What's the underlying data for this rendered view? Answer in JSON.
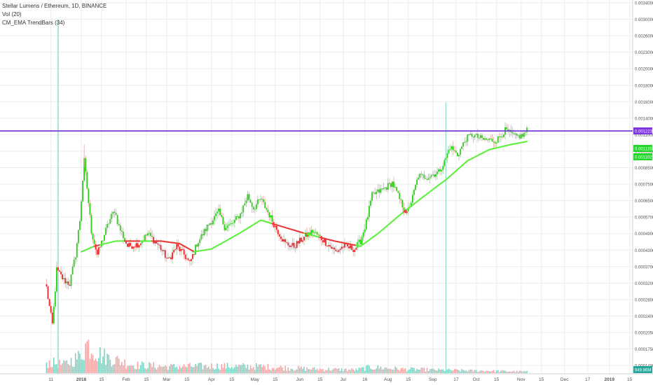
{
  "legend": {
    "title": "Stellar Lumens / Ethereum, 1D, BINANCE",
    "indicator_vol": "Vol (20)",
    "indicator_ema": "CM_EMA TrendBars (34)"
  },
  "colors": {
    "background": "#ffffff",
    "grid": "#ededed",
    "up": "#2ecc1a",
    "down": "#e8232a",
    "wick_up": "#9ec99e",
    "wick_down": "#e8a7a7",
    "vol_up": "#7fd3c4",
    "vol_down": "#f3a6a6",
    "ema_up": "#5cf03a",
    "ema_down": "#e83838",
    "hline": "#6b2fd6",
    "label_purple": "#7d33e0",
    "label_green": "#22d62a",
    "label_teal": "#26a69a"
  },
  "chart_data": {
    "type": "candlestick",
    "title": "Stellar Lumens / Ethereum, 1D, BINANCE",
    "xlabel": "",
    "ylabel": "",
    "ylim": [
      0.000135,
      0.00355
    ],
    "scale": "log",
    "grid": true,
    "legend_position": "top-left",
    "x_tick_labels": [
      "11",
      "2018",
      "15",
      "Feb",
      "15",
      "Mar",
      "15",
      "Apr",
      "15",
      "May",
      "15",
      "Jun",
      "15",
      "Jul",
      "16",
      "Aug",
      "15",
      "Sep",
      "17",
      "Oct",
      "15",
      "Nov",
      "15",
      "Dec",
      "17",
      "2019",
      "15"
    ],
    "y_tick_labels": [
      "0.00340000",
      "0.00300000",
      "0.00260000",
      "0.00230000",
      "0.00200000",
      "0.00180000",
      "0.00160000",
      "0.00140000",
      "0.00110000",
      "0.00095000",
      "0.00085000",
      "0.00075000",
      "0.00065000",
      "0.00057000",
      "0.00049000",
      "0.00043000",
      "0.00037000",
      "0.00032000",
      "0.00028000",
      "0.00024000",
      "0.00020500",
      "0.00017500",
      "0.00014800"
    ],
    "current_price_label": "0.00122300",
    "price_labels": [
      "0.00111520",
      "0.00110290"
    ],
    "volume_label": "949.86M",
    "horizontal_line": 0.001223,
    "y_anchors": [
      {
        "value": 0.0034,
        "tick": 0
      },
      {
        "value": 0.0016,
        "tick": 6
      },
      {
        "value": 0.00075,
        "tick": 11
      },
      {
        "value": 0.00049,
        "tick": 14
      },
      {
        "value": 0.00028,
        "tick": 18
      },
      {
        "value": 0.000148,
        "tick": 22
      }
    ],
    "series": [
      {
        "name": "Price",
        "type": "candlestick",
        "ohlc_keyframes": [
          {
            "x": "2017-12-08",
            "c": 0.00031
          },
          {
            "x": "2017-12-12",
            "c": 0.00022
          },
          {
            "x": "2017-12-15",
            "c": 0.00036
          },
          {
            "x": "2017-12-20",
            "c": 0.00033
          },
          {
            "x": "2017-12-24",
            "c": 0.00032
          },
          {
            "x": "2017-12-28",
            "c": 0.00041
          },
          {
            "x": "2017-12-31",
            "c": 0.00055
          },
          {
            "x": "2018-01-03",
            "c": 0.00093
          },
          {
            "x": "2018-01-06",
            "c": 0.00064
          },
          {
            "x": "2018-01-08",
            "c": 0.0005
          },
          {
            "x": "2018-01-12",
            "c": 0.00041
          },
          {
            "x": "2018-01-16",
            "c": 0.00047
          },
          {
            "x": "2018-01-20",
            "c": 0.00054
          },
          {
            "x": "2018-01-24",
            "c": 0.0006
          },
          {
            "x": "2018-01-27",
            "c": 0.00052
          },
          {
            "x": "2018-02-02",
            "c": 0.00044
          },
          {
            "x": "2018-02-10",
            "c": 0.00045
          },
          {
            "x": "2018-02-16",
            "c": 0.00049
          },
          {
            "x": "2018-02-24",
            "c": 0.00044
          },
          {
            "x": "2018-03-02",
            "c": 0.00039
          },
          {
            "x": "2018-03-08",
            "c": 0.00044
          },
          {
            "x": "2018-03-13",
            "c": 0.00041
          },
          {
            "x": "2018-03-17",
            "c": 0.00038
          },
          {
            "x": "2018-03-22",
            "c": 0.00045
          },
          {
            "x": "2018-03-30",
            "c": 0.00053
          },
          {
            "x": "2018-04-06",
            "c": 0.00059
          },
          {
            "x": "2018-04-10",
            "c": 0.00052
          },
          {
            "x": "2018-04-15",
            "c": 0.00053
          },
          {
            "x": "2018-04-21",
            "c": 0.00058
          },
          {
            "x": "2018-04-26",
            "c": 0.00068
          },
          {
            "x": "2018-04-30",
            "c": 0.00061
          },
          {
            "x": "2018-05-05",
            "c": 0.00066
          },
          {
            "x": "2018-05-10",
            "c": 0.00059
          },
          {
            "x": "2018-05-15",
            "c": 0.00052
          },
          {
            "x": "2018-05-22",
            "c": 0.00045
          },
          {
            "x": "2018-05-28",
            "c": 0.00044
          },
          {
            "x": "2018-06-05",
            "c": 0.00048
          },
          {
            "x": "2018-06-10",
            "c": 0.0005
          },
          {
            "x": "2018-06-18",
            "c": 0.00046
          },
          {
            "x": "2018-06-26",
            "c": 0.00042
          },
          {
            "x": "2018-07-01",
            "c": 0.00044
          },
          {
            "x": "2018-07-09",
            "c": 0.00043
          },
          {
            "x": "2018-07-13",
            "c": 0.00046
          },
          {
            "x": "2018-07-17",
            "c": 0.00054
          },
          {
            "x": "2018-07-21",
            "c": 0.00068
          },
          {
            "x": "2018-07-29",
            "c": 0.00072
          },
          {
            "x": "2018-08-04",
            "c": 0.00076
          },
          {
            "x": "2018-08-10",
            "c": 0.00064
          },
          {
            "x": "2018-08-14",
            "c": 0.00058
          },
          {
            "x": "2018-08-18",
            "c": 0.00067
          },
          {
            "x": "2018-08-22",
            "c": 0.00081
          },
          {
            "x": "2018-08-28",
            "c": 0.0008
          },
          {
            "x": "2018-09-05",
            "c": 0.00084
          },
          {
            "x": "2018-09-09",
            "c": 0.00092
          },
          {
            "x": "2018-09-13",
            "c": 0.00106
          },
          {
            "x": "2018-09-18",
            "c": 0.00098
          },
          {
            "x": "2018-09-24",
            "c": 0.00114
          },
          {
            "x": "2018-09-28",
            "c": 0.00118
          },
          {
            "x": "2018-10-06",
            "c": 0.00113
          },
          {
            "x": "2018-10-15",
            "c": 0.00112
          },
          {
            "x": "2018-10-21",
            "c": 0.00123
          },
          {
            "x": "2018-10-28",
            "c": 0.00116
          },
          {
            "x": "2018-11-02",
            "c": 0.00117
          },
          {
            "x": "2018-11-05",
            "c": 0.00123
          }
        ]
      },
      {
        "name": "EMA (34)",
        "type": "line",
        "keyframes": [
          {
            "x": "2018-01-01",
            "y": 0.00042
          },
          {
            "x": "2018-01-10",
            "y": 0.00044
          },
          {
            "x": "2018-01-25",
            "y": 0.00046
          },
          {
            "x": "2018-02-10",
            "y": 0.00046
          },
          {
            "x": "2018-02-25",
            "y": 0.00046
          },
          {
            "x": "2018-03-10",
            "y": 0.00045
          },
          {
            "x": "2018-03-20",
            "y": 0.00042
          },
          {
            "x": "2018-04-01",
            "y": 0.00043
          },
          {
            "x": "2018-04-20",
            "y": 0.00049
          },
          {
            "x": "2018-05-05",
            "y": 0.00055
          },
          {
            "x": "2018-05-20",
            "y": 0.00052
          },
          {
            "x": "2018-06-05",
            "y": 0.00049
          },
          {
            "x": "2018-06-25",
            "y": 0.00046
          },
          {
            "x": "2018-07-13",
            "y": 0.00044
          },
          {
            "x": "2018-07-25",
            "y": 0.00049
          },
          {
            "x": "2018-08-10",
            "y": 0.00058
          },
          {
            "x": "2018-08-25",
            "y": 0.00067
          },
          {
            "x": "2018-09-10",
            "y": 0.00078
          },
          {
            "x": "2018-09-25",
            "y": 0.00093
          },
          {
            "x": "2018-10-10",
            "y": 0.00103
          },
          {
            "x": "2018-10-25",
            "y": 0.00108
          },
          {
            "x": "2018-11-05",
            "y": 0.00111
          }
        ]
      },
      {
        "name": "Vol",
        "type": "bar",
        "keyframes": [
          {
            "x": "2017-12-08",
            "v": 60
          },
          {
            "x": "2017-12-20",
            "v": 45
          },
          {
            "x": "2017-12-31",
            "v": 90
          },
          {
            "x": "2018-01-05",
            "v": 160
          },
          {
            "x": "2018-01-15",
            "v": 95
          },
          {
            "x": "2018-02-05",
            "v": 45
          },
          {
            "x": "2018-03-01",
            "v": 35
          },
          {
            "x": "2018-04-05",
            "v": 38
          },
          {
            "x": "2018-05-05",
            "v": 35
          },
          {
            "x": "2018-06-10",
            "v": 22
          },
          {
            "x": "2018-07-10",
            "v": 18
          },
          {
            "x": "2018-07-20",
            "v": 32
          },
          {
            "x": "2018-08-10",
            "v": 22
          },
          {
            "x": "2018-09-10",
            "v": 16
          },
          {
            "x": "2018-10-10",
            "v": 12
          },
          {
            "x": "2018-11-05",
            "v": 8
          }
        ]
      }
    ]
  }
}
